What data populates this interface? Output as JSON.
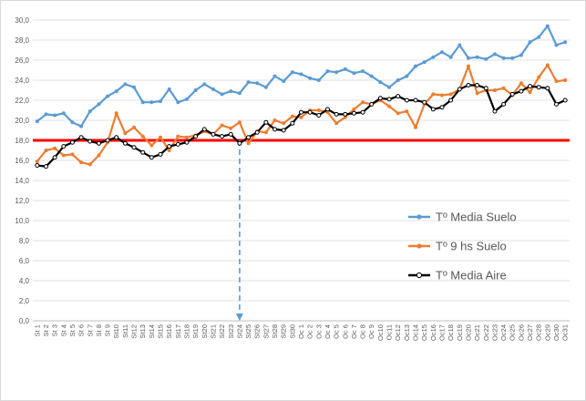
{
  "chart_data": {
    "type": "line",
    "title": "",
    "xlabel": "",
    "ylabel": "",
    "ylim": [
      0,
      30
    ],
    "ytick_step": 2,
    "ytick_labels": [
      "0,0",
      "2,0",
      "4,0",
      "6,0",
      "8,0",
      "10,0",
      "12,0",
      "14,0",
      "16,0",
      "18,0",
      "20,0",
      "22,0",
      "24,0",
      "26,0",
      "28,0",
      "30,0"
    ],
    "grid": "horizontal",
    "legend_position": "right",
    "categories": [
      "St 1",
      "St 2",
      "St 3",
      "St 4",
      "St 5",
      "St 6",
      "St 7",
      "St 8",
      "St 9",
      "St10",
      "St11",
      "St12",
      "St13",
      "St14",
      "St15",
      "St16",
      "St17",
      "St18",
      "St19",
      "St20",
      "St21",
      "St22",
      "St23",
      "St24",
      "St25",
      "St26",
      "St27",
      "St28",
      "St29",
      "St30",
      "Oc 1",
      "Oc 2",
      "Oc 3",
      "Oc 4",
      "Oc 5",
      "Oc 6",
      "Oc 7",
      "Oc 8",
      "Oc 9",
      "Oc10",
      "Oc11",
      "Oc12",
      "Oc13",
      "Oc14",
      "Oc15",
      "Oc16",
      "Oc17",
      "Oc18",
      "Oc19",
      "Oc20",
      "Oc21",
      "Oc22",
      "Oc23",
      "Oc24",
      "Oc25",
      "Oc26",
      "Oc27",
      "Oc28",
      "Oc29",
      "Oc30",
      "Oc31"
    ],
    "series": [
      {
        "name": "Tº Media Suelo",
        "color": "#5b9bd5",
        "values": [
          19.9,
          20.6,
          20.5,
          20.7,
          19.8,
          19.4,
          20.9,
          21.6,
          22.4,
          22.9,
          23.6,
          23.3,
          21.8,
          21.8,
          21.9,
          23.1,
          21.8,
          22.1,
          23.0,
          23.6,
          23.1,
          22.6,
          22.9,
          22.7,
          23.8,
          23.7,
          23.3,
          24.4,
          23.9,
          24.8,
          24.6,
          24.2,
          24.0,
          24.9,
          24.8,
          25.1,
          24.7,
          24.9,
          24.4,
          23.8,
          23.3,
          24.0,
          24.4,
          25.4,
          25.8,
          26.3,
          26.8,
          26.3,
          27.5,
          26.2,
          26.3,
          26.1,
          26.6,
          26.2,
          26.2,
          26.5,
          27.8,
          28.3,
          29.4,
          27.5,
          27.8
        ]
      },
      {
        "name": "Tº  9 hs Suelo",
        "color": "#ed7d31",
        "values": [
          15.9,
          17.0,
          17.2,
          16.5,
          16.6,
          15.8,
          15.6,
          16.5,
          17.8,
          20.7,
          18.7,
          19.3,
          18.4,
          17.5,
          18.3,
          17.0,
          18.4,
          18.3,
          18.5,
          18.9,
          18.6,
          19.5,
          19.2,
          19.8,
          17.7,
          18.9,
          18.8,
          20.0,
          19.7,
          20.4,
          20.3,
          21.0,
          21.0,
          20.8,
          19.7,
          20.3,
          21.1,
          21.8,
          21.6,
          22.0,
          21.4,
          20.7,
          20.9,
          19.3,
          21.6,
          22.6,
          22.5,
          22.6,
          23.1,
          25.4,
          22.7,
          23.0,
          23.0,
          23.2,
          22.5,
          23.7,
          22.8,
          24.3,
          25.5,
          23.9,
          24.0
        ]
      },
      {
        "name": "Tº Media Aire",
        "color": "#000000",
        "values": [
          15.5,
          15.4,
          16.3,
          17.4,
          17.8,
          18.3,
          17.9,
          17.7,
          18.0,
          18.3,
          17.7,
          17.3,
          16.8,
          16.3,
          16.6,
          17.4,
          17.6,
          17.8,
          18.4,
          19.1,
          18.6,
          18.4,
          18.6,
          17.7,
          18.3,
          18.8,
          19.8,
          19.1,
          19.0,
          19.7,
          20.8,
          20.8,
          20.5,
          21.1,
          20.6,
          20.6,
          20.7,
          20.8,
          21.6,
          22.2,
          22.1,
          22.4,
          22.0,
          22.0,
          21.8,
          21.1,
          21.3,
          22.0,
          23.1,
          23.5,
          23.5,
          23.2,
          20.9,
          21.6,
          22.6,
          22.9,
          23.4,
          23.3,
          23.2,
          21.6,
          22.0
        ]
      }
    ],
    "annotations": [
      {
        "type": "horizontal-line",
        "y": 18.0,
        "color": "#ff0000"
      },
      {
        "type": "dashed-arrow",
        "x": "St24",
        "from_y": 18.0,
        "to_y": 0,
        "color": "#5b9bd5"
      }
    ]
  }
}
